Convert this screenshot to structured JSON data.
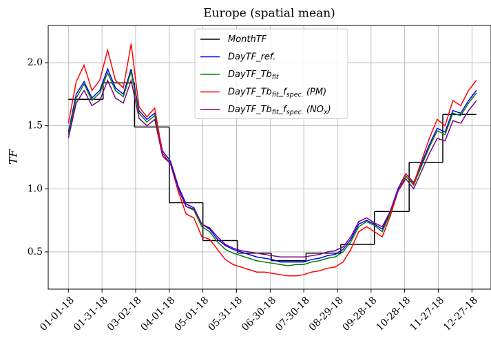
{
  "chart_data": {
    "type": "line",
    "title": "Europe (spatial mean)",
    "y_label": "TF",
    "x": [
      "01-01-18",
      "01-08-18",
      "01-15-18",
      "01-22-18",
      "01-29-18",
      "02-05-18",
      "02-12-18",
      "02-19-18",
      "02-26-18",
      "03-05-18",
      "03-12-18",
      "03-19-18",
      "03-26-18",
      "04-02-18",
      "04-09-18",
      "04-16-18",
      "04-23-18",
      "04-30-18",
      "05-07-18",
      "05-14-18",
      "05-21-18",
      "05-28-18",
      "06-04-18",
      "06-11-18",
      "06-18-18",
      "06-25-18",
      "07-02-18",
      "07-09-18",
      "07-16-18",
      "07-23-18",
      "07-30-18",
      "08-06-18",
      "08-13-18",
      "08-20-18",
      "08-27-18",
      "09-03-18",
      "09-10-18",
      "09-17-18",
      "09-24-18",
      "10-01-18",
      "10-08-18",
      "10-15-18",
      "10-22-18",
      "10-29-18",
      "11-05-18",
      "11-12-18",
      "11-19-18",
      "11-26-18",
      "12-03-18",
      "12-10-18",
      "12-17-18",
      "12-24-18",
      "12-31-18"
    ],
    "series": [
      {
        "name": "MonthTF",
        "color": "#000000",
        "drawstyle": "steps-post",
        "x": [
          "01-01-18",
          "02-01-18",
          "03-01-18",
          "04-01-18",
          "05-01-18",
          "06-01-18",
          "07-01-18",
          "08-01-18",
          "09-01-18",
          "10-01-18",
          "11-01-18",
          "12-01-18",
          "12-31-18"
        ],
        "values": [
          1.71,
          1.84,
          1.49,
          0.89,
          0.59,
          0.49,
          0.43,
          0.49,
          0.56,
          0.82,
          1.21,
          1.59,
          1.59
        ]
      },
      {
        "name": "DayTF_ref.",
        "color": "#0000ff",
        "values": [
          1.45,
          1.75,
          1.85,
          1.72,
          1.78,
          1.95,
          1.8,
          1.75,
          1.95,
          1.62,
          1.55,
          1.6,
          1.3,
          1.22,
          1.02,
          0.88,
          0.85,
          0.72,
          0.68,
          0.6,
          0.55,
          0.52,
          0.5,
          0.48,
          0.46,
          0.45,
          0.44,
          0.42,
          0.42,
          0.42,
          0.42,
          0.44,
          0.45,
          0.47,
          0.48,
          0.52,
          0.6,
          0.72,
          0.75,
          0.72,
          0.68,
          0.82,
          1.0,
          1.12,
          1.05,
          1.2,
          1.35,
          1.48,
          1.45,
          1.62,
          1.6,
          1.7,
          1.78
        ]
      },
      {
        "name": "DayTF_Tb_{fit}",
        "color": "#008000",
        "values": [
          1.43,
          1.72,
          1.83,
          1.7,
          1.76,
          1.92,
          1.78,
          1.73,
          1.93,
          1.6,
          1.53,
          1.58,
          1.28,
          1.2,
          1.0,
          0.86,
          0.83,
          0.7,
          0.66,
          0.58,
          0.52,
          0.49,
          0.47,
          0.45,
          0.43,
          0.42,
          0.41,
          0.4,
          0.39,
          0.4,
          0.4,
          0.42,
          0.43,
          0.45,
          0.46,
          0.5,
          0.58,
          0.7,
          0.74,
          0.71,
          0.66,
          0.8,
          0.98,
          1.1,
          1.03,
          1.18,
          1.33,
          1.46,
          1.43,
          1.6,
          1.58,
          1.68,
          1.76
        ]
      },
      {
        "name": "DayTF_Tb_{fit}_f_{spec.} (PM)",
        "color": "#ff0000",
        "values": [
          1.52,
          1.85,
          1.98,
          1.78,
          1.86,
          2.1,
          1.86,
          1.8,
          2.15,
          1.65,
          1.57,
          1.64,
          1.28,
          1.2,
          0.98,
          0.8,
          0.77,
          0.62,
          0.6,
          0.52,
          0.44,
          0.4,
          0.38,
          0.36,
          0.34,
          0.34,
          0.33,
          0.32,
          0.31,
          0.31,
          0.32,
          0.34,
          0.35,
          0.37,
          0.38,
          0.42,
          0.52,
          0.66,
          0.7,
          0.66,
          0.62,
          0.78,
          0.98,
          1.12,
          1.04,
          1.22,
          1.4,
          1.55,
          1.5,
          1.7,
          1.66,
          1.78,
          1.86
        ]
      },
      {
        "name": "DayTF_Tb_{fit}_f_{spec.} (NO_{x})",
        "color": "#800080",
        "values": [
          1.4,
          1.68,
          1.78,
          1.66,
          1.7,
          1.86,
          1.72,
          1.68,
          1.86,
          1.56,
          1.5,
          1.55,
          1.26,
          1.2,
          1.0,
          0.86,
          0.84,
          0.72,
          0.69,
          0.62,
          0.56,
          0.53,
          0.51,
          0.5,
          0.49,
          0.48,
          0.47,
          0.46,
          0.46,
          0.46,
          0.46,
          0.47,
          0.48,
          0.5,
          0.51,
          0.54,
          0.62,
          0.74,
          0.77,
          0.73,
          0.7,
          0.82,
          0.98,
          1.08,
          1.0,
          1.14,
          1.28,
          1.4,
          1.38,
          1.54,
          1.52,
          1.62,
          1.7
        ]
      }
    ],
    "xlim": [
      "12-14-17",
      "01-13-19"
    ],
    "xticks": [
      "01-01-18",
      "01-31-18",
      "03-02-18",
      "04-01-18",
      "05-01-18",
      "05-31-18",
      "06-30-18",
      "07-30-18",
      "08-29-18",
      "09-28-18",
      "10-28-18",
      "11-27-18",
      "12-27-18"
    ],
    "ylim": [
      0.205,
      2.295
    ],
    "yticks": [
      0.5,
      {
        "value": 1,
        "label": "1.0"
      },
      1.5,
      {
        "value": 2,
        "label": "2.0"
      }
    ],
    "grid": true,
    "legend": "upper center"
  }
}
